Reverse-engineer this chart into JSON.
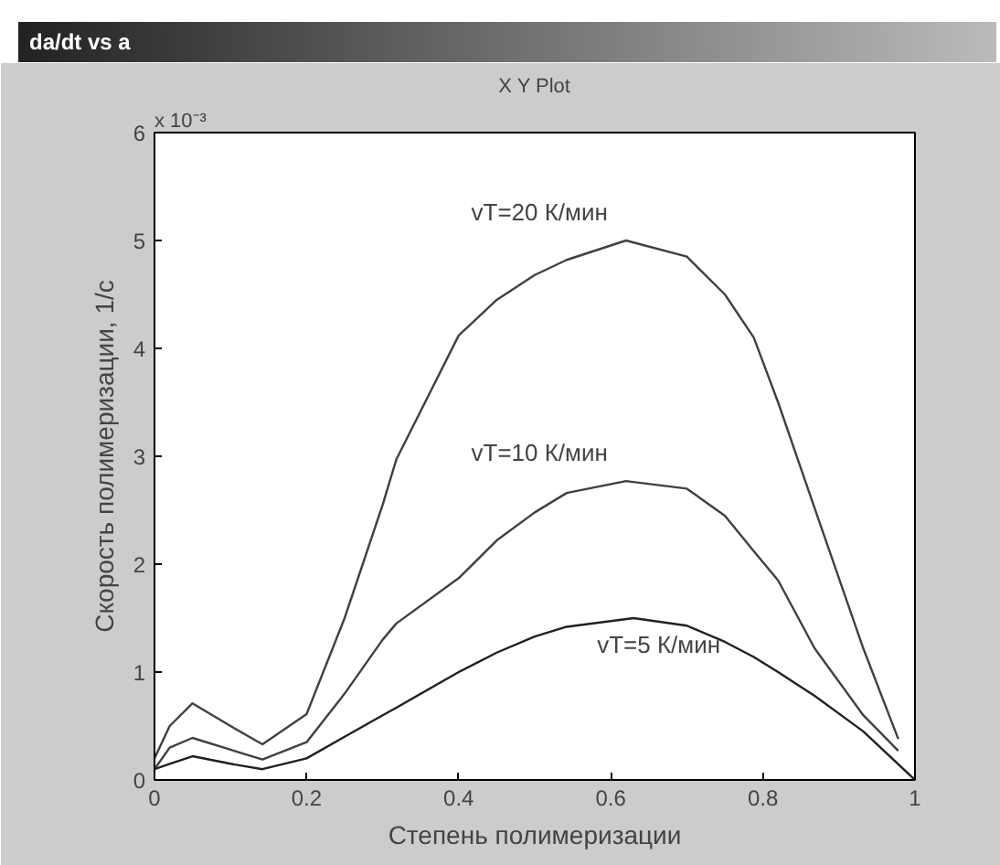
{
  "chart_data": {
    "type": "line",
    "title": "X Y Plot",
    "xlabel": "Степень полимеризации",
    "ylabel": "Скорость полимеризации, 1/с",
    "x": [
      0,
      0.02,
      0.05,
      0.1,
      0.142,
      0.2,
      0.25,
      0.3,
      0.318,
      0.4,
      0.45,
      0.5,
      0.542,
      0.62,
      0.7,
      0.75,
      0.788,
      0.82,
      0.868,
      0.932,
      0.978
    ],
    "series": [
      {
        "name": "vT=20 К/мин",
        "color": "#404040",
        "values": [
          0.2,
          0.5,
          0.71,
          0.5,
          0.33,
          0.61,
          1.5,
          2.55,
          2.97,
          4.12,
          4.45,
          4.68,
          4.82,
          5.0,
          4.85,
          4.5,
          4.1,
          3.5,
          2.52,
          1.22,
          0.38
        ]
      },
      {
        "name": "vT=10 К/мин",
        "color": "#404040",
        "values": [
          0.1,
          0.3,
          0.39,
          0.28,
          0.19,
          0.35,
          0.8,
          1.3,
          1.45,
          1.87,
          2.22,
          2.48,
          2.66,
          2.77,
          2.7,
          2.45,
          2.12,
          1.85,
          1.22,
          0.6,
          0.27
        ]
      },
      {
        "name": "vT=5 К/мин",
        "color": "#202020",
        "x": [
          0,
          0.02,
          0.05,
          0.1,
          0.142,
          0.2,
          0.25,
          0.3,
          0.318,
          0.4,
          0.45,
          0.5,
          0.542,
          0.63,
          0.7,
          0.75,
          0.788,
          0.82,
          0.868,
          0.932,
          1.0
        ],
        "values": [
          0.1,
          0.15,
          0.22,
          0.15,
          0.1,
          0.2,
          0.4,
          0.6,
          0.67,
          1.0,
          1.18,
          1.33,
          1.42,
          1.5,
          1.43,
          1.28,
          1.14,
          1.0,
          0.78,
          0.45,
          0.0
        ]
      }
    ],
    "xlim": [
      0,
      1
    ],
    "ylim": [
      0,
      6
    ],
    "xticks": [
      0,
      0.2,
      0.4,
      0.6,
      0.8,
      1
    ],
    "yticks": [
      0,
      1,
      2,
      3,
      4,
      5,
      6
    ],
    "annotations": [
      "x 10⁻³",
      "da/dt vs a"
    ],
    "grid": false,
    "line_style": "solid",
    "marker": "none"
  }
}
